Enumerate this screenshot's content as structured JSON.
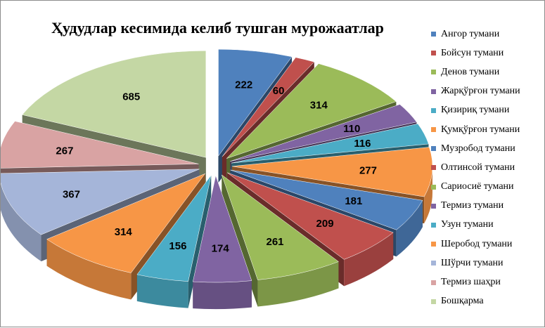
{
  "chart_data": {
    "type": "pie",
    "title": "Ҳудудлар  кесимида келиб тушган  мурожаатлар",
    "categories": [
      "Ангор тумани",
      "Бойсун тумани",
      "Денов тумани",
      "Жарқўрғон тумани",
      "Қизириқ тумани",
      "Қумқўрғон  тумани",
      "Музробод  тумани",
      "Олтинсой тумани",
      "Сариосиё тумани",
      "Термиз тумани",
      "Узун тумани",
      "Шеробод тумани",
      "Шўрчи тумани",
      "Термиз шаҳри",
      "Бошқарма"
    ],
    "values": [
      222,
      60,
      314,
      110,
      116,
      277,
      181,
      209,
      261,
      174,
      156,
      314,
      367,
      267,
      685
    ],
    "colors": [
      "#4f81bd",
      "#c0504d",
      "#9bbb59",
      "#8064a2",
      "#4bacc6",
      "#f79646",
      "#4f81bd",
      "#c0504d",
      "#9bbb59",
      "#8064a2",
      "#4bacc6",
      "#f79646",
      "#a5b5d9",
      "#d9a3a3",
      "#c4d7a4"
    ],
    "label_colors": [
      "#000000",
      "#000000",
      "#000000",
      "#000000",
      "#000000",
      "#000000",
      "#000000",
      "#000000",
      "#000000",
      "#000000",
      "#000000",
      "#000000",
      "#000000",
      "#000000",
      "#000000"
    ],
    "style": "3d-exploded",
    "legend_position": "right"
  }
}
